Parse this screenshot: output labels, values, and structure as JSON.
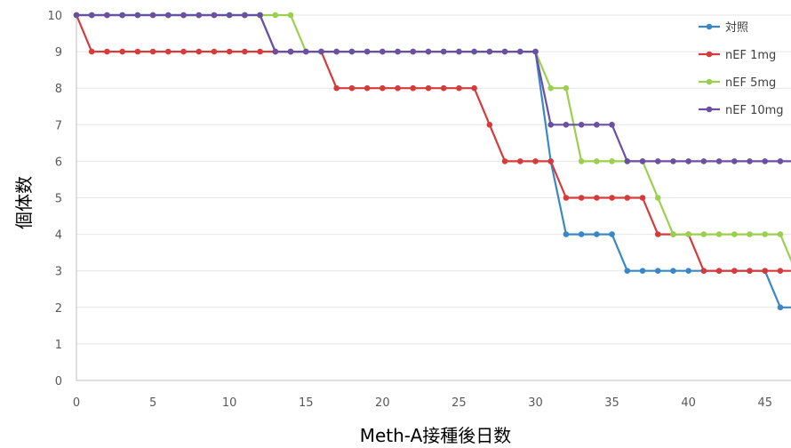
{
  "chart_data": {
    "type": "line",
    "title": "",
    "xlabel": "Meth-A接種後日数",
    "ylabel": "個体数",
    "xlim": [
      0,
      46.7
    ],
    "ylim": [
      0,
      10
    ],
    "x_ticks": [
      0,
      5,
      10,
      15,
      20,
      25,
      30,
      35,
      40,
      45
    ],
    "y_ticks": [
      0,
      1,
      2,
      3,
      4,
      5,
      6,
      7,
      8,
      9,
      10
    ],
    "grid": "horizontal",
    "legend_position": "top-right",
    "x": [
      0,
      1,
      2,
      3,
      4,
      5,
      6,
      7,
      8,
      9,
      10,
      11,
      12,
      13,
      14,
      15,
      16,
      17,
      18,
      19,
      20,
      21,
      22,
      23,
      24,
      25,
      26,
      27,
      28,
      29,
      30,
      31,
      32,
      33,
      34,
      35,
      36,
      37,
      38,
      39,
      40,
      41,
      42,
      43,
      44,
      45,
      46,
      47
    ],
    "series": [
      {
        "name": "対照",
        "color": "#3a87c6",
        "values": [
          10,
          10,
          10,
          10,
          10,
          10,
          10,
          10,
          10,
          10,
          10,
          10,
          10,
          9,
          9,
          9,
          9,
          9,
          9,
          9,
          9,
          9,
          9,
          9,
          9,
          9,
          9,
          9,
          9,
          9,
          9,
          6,
          4,
          4,
          4,
          4,
          3,
          3,
          3,
          3,
          3,
          3,
          3,
          3,
          3,
          3,
          2,
          2
        ]
      },
      {
        "name": "nEF 1mg",
        "color": "#d63b3b",
        "values": [
          10,
          9,
          9,
          9,
          9,
          9,
          9,
          9,
          9,
          9,
          9,
          9,
          9,
          9,
          9,
          9,
          9,
          8,
          8,
          8,
          8,
          8,
          8,
          8,
          8,
          8,
          8,
          7,
          6,
          6,
          6,
          6,
          5,
          5,
          5,
          5,
          5,
          5,
          4,
          4,
          4,
          3,
          3,
          3,
          3,
          3,
          3,
          3
        ]
      },
      {
        "name": "nEF 5mg",
        "color": "#9bcf4f",
        "values": [
          10,
          10,
          10,
          10,
          10,
          10,
          10,
          10,
          10,
          10,
          10,
          10,
          10,
          10,
          10,
          9,
          9,
          9,
          9,
          9,
          9,
          9,
          9,
          9,
          9,
          9,
          9,
          9,
          9,
          9,
          9,
          8,
          8,
          6,
          6,
          6,
          6,
          6,
          5,
          4,
          4,
          4,
          4,
          4,
          4,
          4,
          4,
          3
        ]
      },
      {
        "name": "nEF 10mg",
        "color": "#6a4fa3",
        "values": [
          10,
          10,
          10,
          10,
          10,
          10,
          10,
          10,
          10,
          10,
          10,
          10,
          10,
          9,
          9,
          9,
          9,
          9,
          9,
          9,
          9,
          9,
          9,
          9,
          9,
          9,
          9,
          9,
          9,
          9,
          9,
          7,
          7,
          7,
          7,
          7,
          6,
          6,
          6,
          6,
          6,
          6,
          6,
          6,
          6,
          6,
          6,
          6
        ]
      }
    ]
  }
}
